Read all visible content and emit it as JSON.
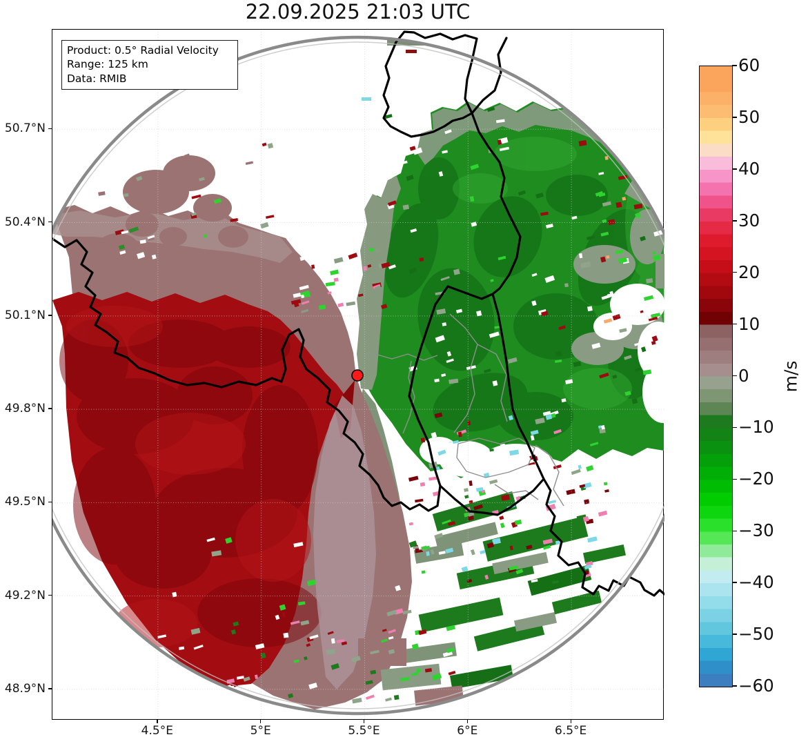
{
  "figure": {
    "title": "22.09.2025 21:03 UTC"
  },
  "info_box": {
    "line1": "Product: 0.5° Radial Velocity",
    "line2": "Range: 125 km",
    "line3": "Data: RMIB"
  },
  "chart_data": {
    "type": "heatmap",
    "title": "22.09.2025 21:03 UTC",
    "product": "0.5° Radial Velocity",
    "range_km": 125,
    "data_source": "RMIB",
    "projection_axes": {
      "lon_range": [
        3.99,
        6.95
      ],
      "lat_range": [
        48.8,
        51.02
      ],
      "lon_ticks": [
        {
          "v": 4.5,
          "label": "4.5°E"
        },
        {
          "v": 5.0,
          "label": "5°E"
        },
        {
          "v": 5.5,
          "label": "5.5°E"
        },
        {
          "v": 6.0,
          "label": "6°E"
        },
        {
          "v": 6.5,
          "label": "6.5°E"
        }
      ],
      "lat_ticks": [
        {
          "v": 50.7,
          "label": "50.7°N"
        },
        {
          "v": 50.4,
          "label": "50.4°N"
        },
        {
          "v": 50.1,
          "label": "50.1°N"
        },
        {
          "v": 49.8,
          "label": "49.8°N"
        },
        {
          "v": 49.5,
          "label": "49.5°N"
        },
        {
          "v": 49.2,
          "label": "49.2°N"
        },
        {
          "v": 48.9,
          "label": "48.9°N"
        }
      ],
      "grid": "dotted light grey"
    },
    "radar_site": {
      "lat": 49.91,
      "lon": 5.47,
      "marker": "red-dot",
      "range_ring_km": 125
    },
    "colorbar": {
      "unit": "m/s",
      "min": -60,
      "max": 60,
      "ticks": [
        {
          "v": 60,
          "label": "60"
        },
        {
          "v": 50,
          "label": "50"
        },
        {
          "v": 40,
          "label": "40"
        },
        {
          "v": 30,
          "label": "30"
        },
        {
          "v": 20,
          "label": "20"
        },
        {
          "v": 10,
          "label": "10"
        },
        {
          "v": 0,
          "label": "0"
        },
        {
          "v": -10,
          "label": "−10"
        },
        {
          "v": -20,
          "label": "−20"
        },
        {
          "v": -30,
          "label": "−30"
        },
        {
          "v": -40,
          "label": "−40"
        },
        {
          "v": -50,
          "label": "−50"
        },
        {
          "v": -60,
          "label": "−60"
        }
      ],
      "bands": [
        {
          "from": 60,
          "to": 55,
          "color": "#fba55c"
        },
        {
          "from": 55,
          "to": 52.5,
          "color": "#fcb168"
        },
        {
          "from": 52.5,
          "to": 50,
          "color": "#fcbd72"
        },
        {
          "from": 50,
          "to": 47.5,
          "color": "#fdd07f"
        },
        {
          "from": 47.5,
          "to": 45,
          "color": "#fee29a"
        },
        {
          "from": 45,
          "to": 42.5,
          "color": "#fbdcc4"
        },
        {
          "from": 42.5,
          "to": 40,
          "color": "#f9bcdb"
        },
        {
          "from": 40,
          "to": 37.5,
          "color": "#f795c8"
        },
        {
          "from": 37.5,
          "to": 35,
          "color": "#f473ae"
        },
        {
          "from": 35,
          "to": 32.5,
          "color": "#ef5389"
        },
        {
          "from": 32.5,
          "to": 30,
          "color": "#e93a64"
        },
        {
          "from": 30,
          "to": 27.5,
          "color": "#e42a45"
        },
        {
          "from": 27.5,
          "to": 25,
          "color": "#de1b2c"
        },
        {
          "from": 25,
          "to": 22.5,
          "color": "#d41420"
        },
        {
          "from": 22.5,
          "to": 20,
          "color": "#c60e18"
        },
        {
          "from": 20,
          "to": 17.5,
          "color": "#b30b12"
        },
        {
          "from": 17.5,
          "to": 15,
          "color": "#a0080d"
        },
        {
          "from": 15,
          "to": 12.5,
          "color": "#89050a"
        },
        {
          "from": 12.5,
          "to": 10,
          "color": "#700204"
        },
        {
          "from": 10,
          "to": 7.5,
          "color": "#8c6262"
        },
        {
          "from": 7.5,
          "to": 5,
          "color": "#967070"
        },
        {
          "from": 5,
          "to": 2.5,
          "color": "#9e7e7e"
        },
        {
          "from": 2.5,
          "to": 0,
          "color": "#a78e8e"
        },
        {
          "from": 0,
          "to": -2.5,
          "color": "#96a28e"
        },
        {
          "from": -2.5,
          "to": -5,
          "color": "#7e9674"
        },
        {
          "from": -5,
          "to": -7.5,
          "color": "#5d8654"
        },
        {
          "from": -7.5,
          "to": -10,
          "color": "#1d7a1f"
        },
        {
          "from": -10,
          "to": -12.5,
          "color": "#128314"
        },
        {
          "from": -12.5,
          "to": -15,
          "color": "#0a9110"
        },
        {
          "from": -15,
          "to": -17.5,
          "color": "#04a00a"
        },
        {
          "from": -17.5,
          "to": -20,
          "color": "#00ae06"
        },
        {
          "from": -20,
          "to": -22.5,
          "color": "#00bd03"
        },
        {
          "from": -22.5,
          "to": -25,
          "color": "#00cc00"
        },
        {
          "from": -25,
          "to": -27.5,
          "color": "#0ed60e"
        },
        {
          "from": -27.5,
          "to": -30,
          "color": "#2ae02a"
        },
        {
          "from": -30,
          "to": -32.5,
          "color": "#55e755"
        },
        {
          "from": -32.5,
          "to": -35,
          "color": "#8feb9a"
        },
        {
          "from": -35,
          "to": -37.5,
          "color": "#c4f0d8"
        },
        {
          "from": -37.5,
          "to": -40,
          "color": "#c3ecf1"
        },
        {
          "from": -40,
          "to": -42.5,
          "color": "#abe4ee"
        },
        {
          "from": -42.5,
          "to": -45,
          "color": "#93dcea"
        },
        {
          "from": -45,
          "to": -47.5,
          "color": "#7bd2e5"
        },
        {
          "from": -47.5,
          "to": -50,
          "color": "#60c7df"
        },
        {
          "from": -50,
          "to": -52.5,
          "color": "#47b9da"
        },
        {
          "from": -52.5,
          "to": -55,
          "color": "#2fa6d3"
        },
        {
          "from": -55,
          "to": -57.5,
          "color": "#2f8fc9"
        },
        {
          "from": -57.5,
          "to": -60,
          "color": "#3d7ec0"
        }
      ]
    },
    "field_regions": [
      {
        "region": "west and southwest of radar",
        "radial_velocity_ms": "+12 to +22",
        "appearance": "dark red (outbound)"
      },
      {
        "region": "northwest band around 50.1–50.35°N",
        "radial_velocity_ms": "+2 to +10",
        "appearance": "mauve / rosy grey"
      },
      {
        "region": "north, east and northeast of radar",
        "radial_velocity_ms": "-8 to -20",
        "appearance": "green (inbound)"
      },
      {
        "region": "zero isodop running N–S through the radar site",
        "radial_velocity_ms": "0",
        "appearance": "grey transition"
      },
      {
        "region": "far north and sector southeast of radar",
        "radial_velocity_ms": "no echo",
        "appearance": "white with scattered noise speckles"
      }
    ],
    "map_overlays": [
      "national borders (black)",
      "province borders (grey)",
      "125 km range ring (grey circle)",
      "radar location (red dot)"
    ]
  }
}
